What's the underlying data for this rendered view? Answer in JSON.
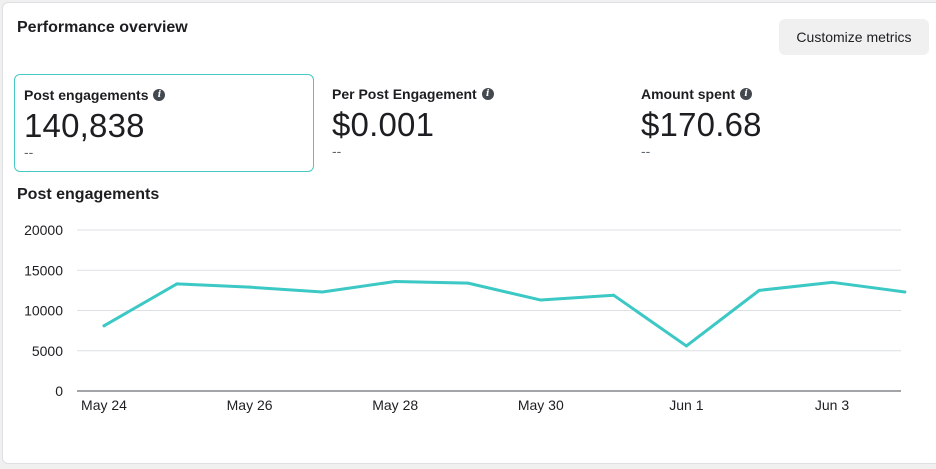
{
  "panel": {
    "title": "Performance overview",
    "customize_label": "Customize metrics"
  },
  "metrics": [
    {
      "label": "Post engagements",
      "value": "140,838",
      "compare": "--",
      "selected": true
    },
    {
      "label": "Per Post Engagement",
      "value": "$0.001",
      "compare": "--",
      "selected": false
    },
    {
      "label": "Amount spent",
      "value": "$170.68",
      "compare": "--",
      "selected": false
    }
  ],
  "colors": {
    "accent": "#3cc8c4",
    "grid": "#dddfe2"
  },
  "chart_data": {
    "type": "line",
    "title": "Post engagements",
    "x": [
      "May 24",
      "May 25",
      "May 26",
      "May 27",
      "May 28",
      "May 29",
      "May 30",
      "May 31",
      "Jun 1",
      "Jun 2",
      "Jun 3",
      "Jun 4"
    ],
    "x_tick_labels": [
      "May 24",
      "May 26",
      "May 28",
      "May 30",
      "Jun 1",
      "Jun 3"
    ],
    "series": [
      {
        "values": [
          8100,
          13300,
          12900,
          12300,
          13600,
          13400,
          11300,
          11900,
          5600,
          12500,
          13500,
          12300
        ]
      }
    ],
    "ylim": [
      0,
      20000
    ],
    "yticks": [
      0,
      5000,
      10000,
      15000,
      20000
    ],
    "grid": true,
    "xlabel": "",
    "ylabel": ""
  }
}
